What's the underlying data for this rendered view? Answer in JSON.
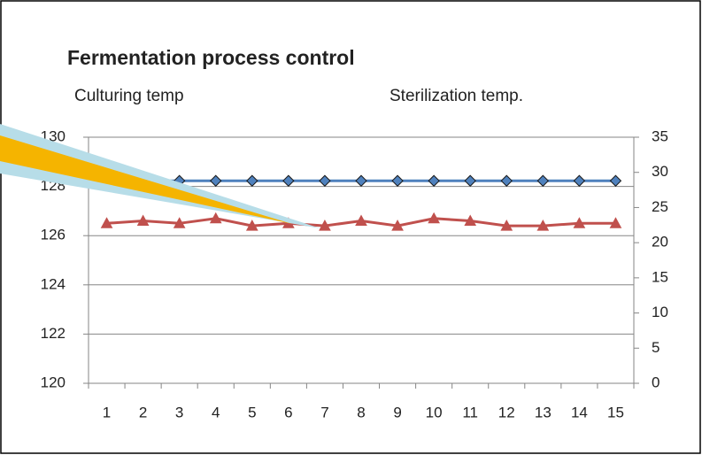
{
  "chart_data": {
    "type": "line",
    "title": "Fermentation process control",
    "categories": [
      "1",
      "2",
      "3",
      "4",
      "5",
      "6",
      "7",
      "8",
      "9",
      "10",
      "11",
      "12",
      "13",
      "14",
      "15"
    ],
    "series": [
      {
        "name": "Culturing temp",
        "color": "#4f81bd",
        "marker": "diamond",
        "axis": "y2",
        "values": [
          28.8,
          28.8,
          28.8,
          28.8,
          28.8,
          28.8,
          28.8,
          28.8,
          28.8,
          28.8,
          28.8,
          28.8,
          28.8,
          28.8,
          28.8
        ]
      },
      {
        "name": "Sterilization temp.",
        "color": "#c0504d",
        "marker": "triangle",
        "axis": "y",
        "values": [
          126.5,
          126.6,
          126.5,
          126.7,
          126.4,
          126.5,
          126.4,
          126.6,
          126.4,
          126.7,
          126.6,
          126.4,
          126.4,
          126.5,
          126.5
        ]
      }
    ],
    "ylim": [
      120,
      130
    ],
    "yticks": [
      120,
      122,
      124,
      126,
      128,
      130
    ],
    "y2lim": [
      0,
      35
    ],
    "y2ticks": [
      0,
      5,
      10,
      15,
      20,
      25,
      30,
      35
    ],
    "grid": true
  }
}
